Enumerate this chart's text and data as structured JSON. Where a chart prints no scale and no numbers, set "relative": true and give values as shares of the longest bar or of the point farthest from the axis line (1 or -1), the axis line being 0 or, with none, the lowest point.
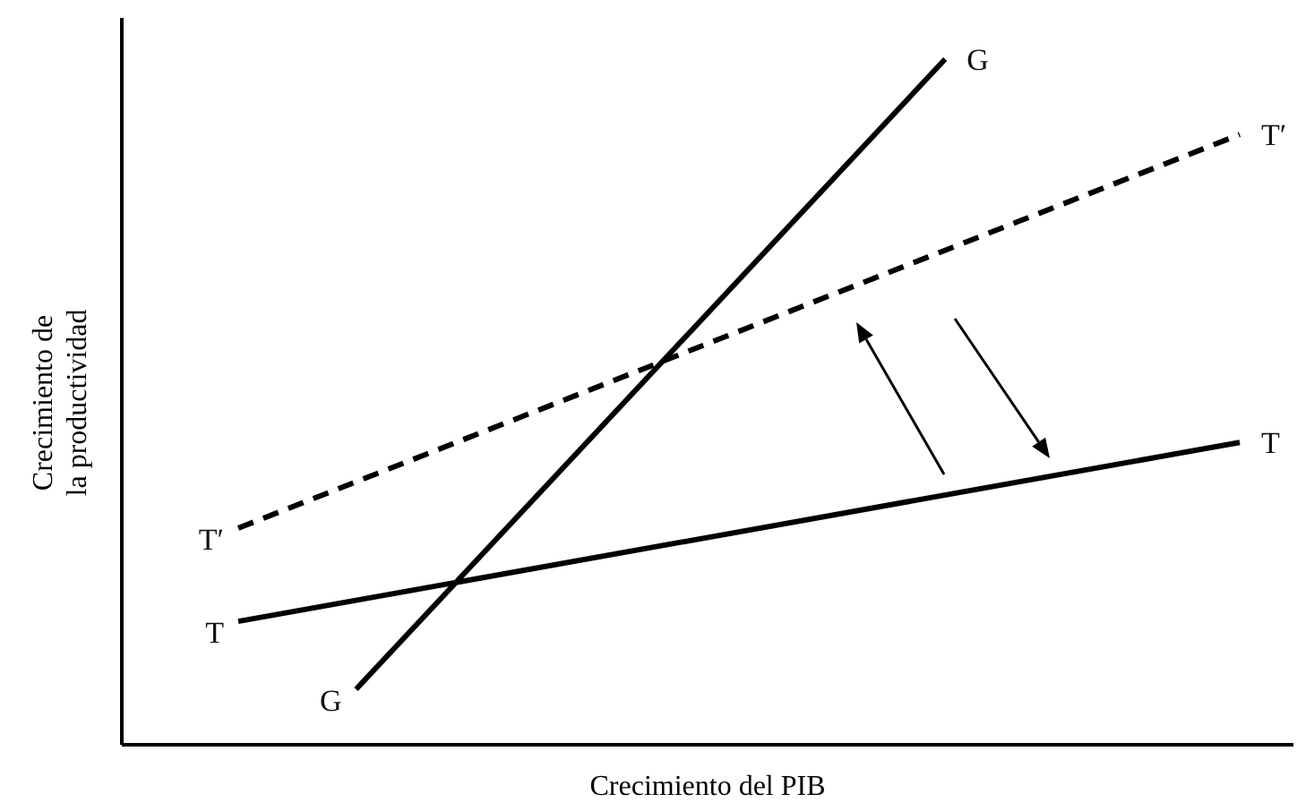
{
  "chart_data": {
    "type": "line",
    "relative": true,
    "xlabel": "Crecimiento del PIB",
    "ylabel": "Crecimiento de\nla productividad",
    "categories": [
      null,
      null,
      null,
      null,
      null,
      null,
      null,
      null,
      null,
      null,
      null,
      null,
      null,
      null,
      null,
      null,
      null,
      null
    ],
    "marker": "none",
    "series": [
      {
        "name": "G",
        "color": "#000000",
        "values": [
          null,
          null,
          0.081,
          null,
          null,
          null,
          null,
          null,
          null,
          null,
          null,
          null,
          1,
          null,
          null,
          null,
          null,
          null
        ],
        "line_style": "solid"
      },
      {
        "name": "T′",
        "color": "#000000",
        "values": [
          0.316,
          null,
          null,
          null,
          null,
          null,
          null,
          null,
          null,
          null,
          null,
          null,
          null,
          null,
          null,
          null,
          null,
          0.89
        ],
        "line_style": "dashed"
      },
      {
        "name": "T",
        "color": "#000000",
        "values": [
          0.18,
          null,
          null,
          null,
          null,
          null,
          null,
          null,
          null,
          null,
          null,
          null,
          null,
          null,
          null,
          null,
          null,
          0.441
        ],
        "line_style": "solid"
      }
    ]
  }
}
